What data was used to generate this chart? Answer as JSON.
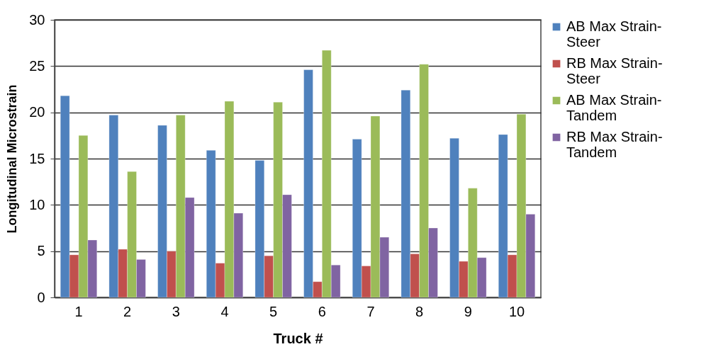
{
  "chart_data": {
    "type": "bar",
    "xlabel": "Truck #",
    "ylabel": "Longitudinal Microstrain",
    "categories": [
      "1",
      "2",
      "3",
      "4",
      "5",
      "6",
      "7",
      "8",
      "9",
      "10"
    ],
    "series": [
      {
        "name": "AB Max Strain-Steer",
        "color": "#4f81bd",
        "values": [
          21.8,
          19.7,
          18.6,
          15.9,
          14.8,
          24.6,
          17.1,
          22.4,
          17.2,
          17.6
        ]
      },
      {
        "name": "RB Max Strain-Steer",
        "color": "#c0504d",
        "values": [
          4.6,
          5.2,
          5.0,
          3.7,
          4.5,
          1.7,
          3.4,
          4.7,
          3.9,
          4.6
        ]
      },
      {
        "name": "AB Max Strain-Tandem",
        "color": "#9bbb59",
        "values": [
          17.5,
          13.6,
          19.7,
          21.2,
          21.1,
          26.7,
          19.6,
          25.2,
          11.8,
          19.8
        ]
      },
      {
        "name": "RB Max Strain-Tandem",
        "color": "#8064a2",
        "values": [
          6.2,
          4.1,
          10.8,
          9.1,
          11.1,
          3.5,
          6.5,
          7.5,
          4.3,
          9.0
        ]
      }
    ],
    "ylim": [
      0,
      30
    ],
    "yticks": [
      0,
      5,
      10,
      15,
      20,
      25,
      30
    ],
    "grid": "y",
    "legend": "right"
  }
}
